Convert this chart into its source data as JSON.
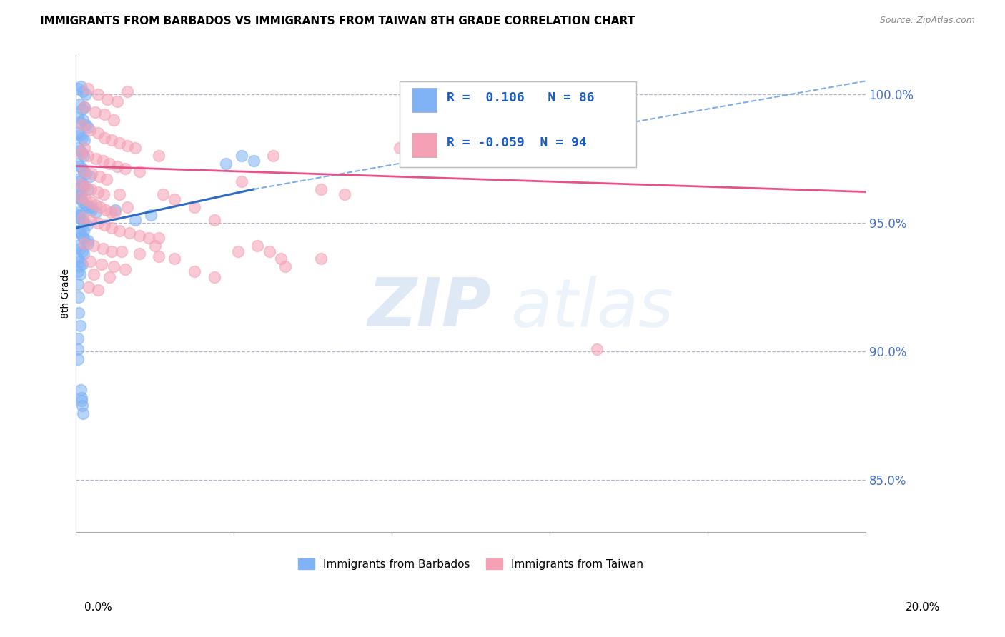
{
  "title": "IMMIGRANTS FROM BARBADOS VS IMMIGRANTS FROM TAIWAN 8TH GRADE CORRELATION CHART",
  "source": "Source: ZipAtlas.com",
  "ylabel": "8th Grade",
  "yticks": [
    85.0,
    90.0,
    95.0,
    100.0
  ],
  "ytick_labels": [
    "85.0%",
    "90.0%",
    "95.0%",
    "100.0%"
  ],
  "xlim": [
    0.0,
    20.0
  ],
  "ylim": [
    83.0,
    101.5
  ],
  "barbados_color": "#7fb3f5",
  "taiwan_color": "#f5a0b5",
  "barbados_R": 0.106,
  "barbados_N": 86,
  "taiwan_R": -0.059,
  "taiwan_N": 94,
  "watermark": "ZIPatlas",
  "background_color": "#ffffff",
  "grid_color": "#b0b8c8",
  "axis_label_color": "#4472c4",
  "blue_line_solid": [
    [
      0.0,
      94.8
    ],
    [
      4.5,
      96.3
    ]
  ],
  "blue_line_dashed": [
    [
      4.5,
      96.3
    ],
    [
      20.0,
      100.5
    ]
  ],
  "pink_line": [
    [
      0.0,
      97.2
    ],
    [
      20.0,
      96.2
    ]
  ],
  "barbados_scatter": [
    [
      0.05,
      100.2
    ],
    [
      0.12,
      100.3
    ],
    [
      0.18,
      100.1
    ],
    [
      0.25,
      100.0
    ],
    [
      0.08,
      99.6
    ],
    [
      0.15,
      99.4
    ],
    [
      0.22,
      99.5
    ],
    [
      0.05,
      99.1
    ],
    [
      0.1,
      98.9
    ],
    [
      0.18,
      99.0
    ],
    [
      0.25,
      98.8
    ],
    [
      0.3,
      98.7
    ],
    [
      0.05,
      98.5
    ],
    [
      0.1,
      98.4
    ],
    [
      0.16,
      98.3
    ],
    [
      0.22,
      98.2
    ],
    [
      0.05,
      97.9
    ],
    [
      0.1,
      97.8
    ],
    [
      0.15,
      97.7
    ],
    [
      0.2,
      97.6
    ],
    [
      0.05,
      97.3
    ],
    [
      0.1,
      97.2
    ],
    [
      0.15,
      97.1
    ],
    [
      0.2,
      97.0
    ],
    [
      0.25,
      96.9
    ],
    [
      0.05,
      96.7
    ],
    [
      0.1,
      96.6
    ],
    [
      0.15,
      96.5
    ],
    [
      0.2,
      96.4
    ],
    [
      0.3,
      96.3
    ],
    [
      0.05,
      96.1
    ],
    [
      0.08,
      96.0
    ],
    [
      0.12,
      95.9
    ],
    [
      0.18,
      95.8
    ],
    [
      0.25,
      95.7
    ],
    [
      0.32,
      95.6
    ],
    [
      0.4,
      95.5
    ],
    [
      0.05,
      95.3
    ],
    [
      0.1,
      95.2
    ],
    [
      0.15,
      95.1
    ],
    [
      0.2,
      95.0
    ],
    [
      0.28,
      94.9
    ],
    [
      0.05,
      94.7
    ],
    [
      0.1,
      94.6
    ],
    [
      0.15,
      94.5
    ],
    [
      0.2,
      94.4
    ],
    [
      0.3,
      94.3
    ],
    [
      0.05,
      94.1
    ],
    [
      0.1,
      94.0
    ],
    [
      0.15,
      93.9
    ],
    [
      0.2,
      93.8
    ],
    [
      0.05,
      93.6
    ],
    [
      0.1,
      93.5
    ],
    [
      0.15,
      93.4
    ],
    [
      0.05,
      93.1
    ],
    [
      0.1,
      93.0
    ],
    [
      0.05,
      92.6
    ],
    [
      0.1,
      96.2
    ],
    [
      0.14,
      96.1
    ],
    [
      0.08,
      95.4
    ],
    [
      0.12,
      95.3
    ],
    [
      0.2,
      94.7
    ],
    [
      0.3,
      94.2
    ],
    [
      0.1,
      91.0
    ],
    [
      0.05,
      89.7
    ],
    [
      0.14,
      88.1
    ],
    [
      0.16,
      87.9
    ],
    [
      0.18,
      87.6
    ],
    [
      1.0,
      95.5
    ],
    [
      1.5,
      95.1
    ],
    [
      1.9,
      95.3
    ],
    [
      3.8,
      97.3
    ],
    [
      4.2,
      97.6
    ],
    [
      4.5,
      97.4
    ],
    [
      0.05,
      90.5
    ],
    [
      0.05,
      90.1
    ],
    [
      0.08,
      93.3
    ],
    [
      0.07,
      92.1
    ],
    [
      0.06,
      91.5
    ],
    [
      0.12,
      88.5
    ],
    [
      0.14,
      88.2
    ],
    [
      0.4,
      95.6
    ],
    [
      0.5,
      95.4
    ],
    [
      0.35,
      96.8
    ]
  ],
  "taiwan_scatter": [
    [
      0.3,
      100.2
    ],
    [
      0.55,
      100.0
    ],
    [
      0.8,
      99.8
    ],
    [
      1.05,
      99.7
    ],
    [
      1.3,
      100.1
    ],
    [
      0.22,
      99.5
    ],
    [
      0.48,
      99.3
    ],
    [
      0.72,
      99.2
    ],
    [
      0.95,
      99.0
    ],
    [
      0.15,
      98.8
    ],
    [
      0.35,
      98.6
    ],
    [
      0.55,
      98.5
    ],
    [
      0.72,
      98.3
    ],
    [
      0.9,
      98.2
    ],
    [
      1.1,
      98.1
    ],
    [
      1.3,
      98.0
    ],
    [
      1.5,
      97.9
    ],
    [
      0.12,
      97.7
    ],
    [
      0.3,
      97.6
    ],
    [
      0.5,
      97.5
    ],
    [
      0.68,
      97.4
    ],
    [
      0.85,
      97.3
    ],
    [
      1.05,
      97.2
    ],
    [
      1.25,
      97.1
    ],
    [
      0.22,
      97.0
    ],
    [
      0.4,
      96.9
    ],
    [
      0.6,
      96.8
    ],
    [
      0.78,
      96.7
    ],
    [
      0.12,
      96.5
    ],
    [
      0.25,
      96.4
    ],
    [
      0.38,
      96.3
    ],
    [
      0.55,
      96.2
    ],
    [
      0.7,
      96.1
    ],
    [
      0.12,
      96.0
    ],
    [
      0.25,
      95.9
    ],
    [
      0.38,
      95.8
    ],
    [
      0.5,
      95.7
    ],
    [
      0.62,
      95.6
    ],
    [
      0.75,
      95.5
    ],
    [
      0.88,
      95.4
    ],
    [
      1.0,
      95.4
    ],
    [
      0.18,
      95.2
    ],
    [
      0.38,
      95.1
    ],
    [
      0.55,
      95.0
    ],
    [
      0.72,
      94.9
    ],
    [
      0.9,
      94.8
    ],
    [
      1.1,
      94.7
    ],
    [
      1.35,
      94.6
    ],
    [
      1.6,
      94.5
    ],
    [
      1.85,
      94.4
    ],
    [
      2.1,
      94.4
    ],
    [
      0.22,
      94.2
    ],
    [
      0.45,
      94.1
    ],
    [
      0.68,
      94.0
    ],
    [
      0.9,
      93.9
    ],
    [
      1.15,
      93.9
    ],
    [
      1.6,
      93.8
    ],
    [
      2.1,
      93.7
    ],
    [
      0.35,
      93.5
    ],
    [
      0.65,
      93.4
    ],
    [
      0.95,
      93.3
    ],
    [
      1.25,
      93.2
    ],
    [
      0.45,
      93.0
    ],
    [
      0.85,
      92.9
    ],
    [
      0.32,
      92.5
    ],
    [
      0.55,
      92.4
    ],
    [
      1.6,
      97.0
    ],
    [
      2.2,
      96.1
    ],
    [
      2.5,
      95.9
    ],
    [
      3.0,
      95.6
    ],
    [
      3.5,
      95.1
    ],
    [
      2.0,
      94.1
    ],
    [
      2.5,
      93.6
    ],
    [
      3.0,
      93.1
    ],
    [
      3.5,
      92.9
    ],
    [
      5.0,
      97.6
    ],
    [
      4.6,
      94.1
    ],
    [
      4.9,
      93.9
    ],
    [
      5.2,
      93.6
    ],
    [
      5.3,
      93.3
    ],
    [
      6.2,
      96.3
    ],
    [
      6.8,
      96.1
    ],
    [
      4.2,
      96.6
    ],
    [
      4.1,
      93.9
    ],
    [
      6.2,
      93.6
    ],
    [
      8.2,
      97.9
    ],
    [
      13.2,
      90.1
    ],
    [
      1.1,
      96.1
    ],
    [
      1.3,
      95.6
    ],
    [
      2.1,
      97.6
    ],
    [
      0.22,
      97.9
    ]
  ]
}
